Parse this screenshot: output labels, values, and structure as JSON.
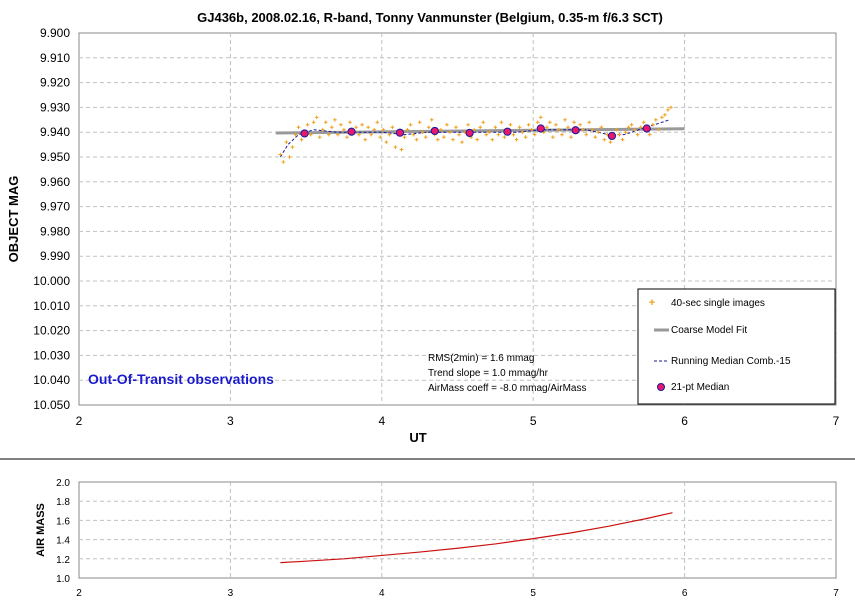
{
  "chart_data": [
    {
      "type": "scatter",
      "title": "GJ436b, 2008.02.16, R-band, Tonny Vanmunster (Belgium, 0.35-m f/6.3 SCT)",
      "xlabel": "UT",
      "ylabel": "OBJECT MAG",
      "xlim": [
        2,
        7
      ],
      "ylim": [
        9.9,
        10.05
      ],
      "y_inverted": true,
      "grid": true,
      "x_ticks": [
        "2",
        "3",
        "4",
        "5",
        "6",
        "7"
      ],
      "y_ticks": [
        "9.900",
        "9.910",
        "9.920",
        "9.930",
        "9.940",
        "9.950",
        "9.960",
        "9.970",
        "9.980",
        "9.990",
        "10.000",
        "10.010",
        "10.020",
        "10.030",
        "10.040",
        "10.050"
      ],
      "legend_position": "bottom-right",
      "series": [
        {
          "name": "40-sec single images",
          "kind": "scatter",
          "color": "#f0a020",
          "x": [
            3.33,
            3.35,
            3.37,
            3.39,
            3.41,
            3.43,
            3.45,
            3.47,
            3.49,
            3.51,
            3.53,
            3.55,
            3.57,
            3.59,
            3.61,
            3.63,
            3.65,
            3.67,
            3.69,
            3.71,
            3.73,
            3.75,
            3.77,
            3.79,
            3.81,
            3.83,
            3.85,
            3.87,
            3.89,
            3.91,
            3.93,
            3.95,
            3.97,
            3.99,
            4.01,
            4.03,
            4.05,
            4.07,
            4.09,
            4.11,
            4.13,
            4.15,
            4.17,
            4.19,
            4.21,
            4.23,
            4.25,
            4.27,
            4.29,
            4.31,
            4.33,
            4.35,
            4.37,
            4.39,
            4.41,
            4.43,
            4.45,
            4.47,
            4.49,
            4.51,
            4.53,
            4.55,
            4.57,
            4.59,
            4.61,
            4.63,
            4.65,
            4.67,
            4.69,
            4.71,
            4.73,
            4.75,
            4.77,
            4.79,
            4.81,
            4.83,
            4.85,
            4.87,
            4.89,
            4.91,
            4.93,
            4.95,
            4.97,
            4.99,
            5.01,
            5.03,
            5.05,
            5.07,
            5.09,
            5.11,
            5.13,
            5.15,
            5.17,
            5.19,
            5.21,
            5.23,
            5.25,
            5.27,
            5.29,
            5.31,
            5.33,
            5.35,
            5.37,
            5.39,
            5.41,
            5.43,
            5.45,
            5.47,
            5.49,
            5.51,
            5.53,
            5.55,
            5.57,
            5.59,
            5.61,
            5.63,
            5.65,
            5.67,
            5.69,
            5.71,
            5.73,
            5.75,
            5.77,
            5.79,
            5.81,
            5.83,
            5.85,
            5.87,
            5.89,
            5.91
          ],
          "y": [
            9.949,
            9.952,
            9.944,
            9.95,
            9.946,
            9.941,
            9.938,
            9.943,
            9.94,
            9.937,
            9.941,
            9.936,
            9.934,
            9.942,
            9.939,
            9.936,
            9.941,
            9.938,
            9.935,
            9.941,
            9.937,
            9.939,
            9.942,
            9.936,
            9.94,
            9.938,
            9.941,
            9.937,
            9.943,
            9.938,
            9.941,
            9.939,
            9.936,
            9.942,
            9.939,
            9.944,
            9.941,
            9.938,
            9.946,
            9.94,
            9.947,
            9.942,
            9.939,
            9.937,
            9.941,
            9.943,
            9.936,
            9.94,
            9.942,
            9.938,
            9.935,
            9.941,
            9.943,
            9.939,
            9.942,
            9.937,
            9.94,
            9.943,
            9.938,
            9.941,
            9.944,
            9.94,
            9.937,
            9.942,
            9.939,
            9.943,
            9.938,
            9.936,
            9.941,
            9.94,
            9.943,
            9.938,
            9.941,
            9.936,
            9.942,
            9.939,
            9.937,
            9.941,
            9.943,
            9.938,
            9.94,
            9.942,
            9.937,
            9.939,
            9.941,
            9.936,
            9.934,
            9.94,
            9.938,
            9.936,
            9.942,
            9.937,
            9.939,
            9.941,
            9.935,
            9.938,
            9.942,
            9.936,
            9.94,
            9.937,
            9.939,
            9.941,
            9.936,
            9.939,
            9.942,
            9.94,
            9.938,
            9.943,
            9.941,
            9.944,
            9.942,
            9.939,
            9.941,
            9.943,
            9.94,
            9.938,
            9.937,
            9.939,
            9.941,
            9.938,
            9.936,
            9.939,
            9.941,
            9.937,
            9.935,
            9.939,
            9.934,
            9.933,
            9.931,
            9.93
          ]
        },
        {
          "name": "Coarse Model Fit",
          "kind": "line",
          "color": "#999999",
          "x": [
            3.3,
            6.0
          ],
          "y": [
            9.9403,
            9.9386
          ]
        },
        {
          "name": "Running Median Comb.-15",
          "kind": "dashed-line",
          "color": "#1a1a99",
          "x": [
            3.33,
            3.38,
            3.45,
            3.55,
            3.7,
            3.85,
            4.0,
            4.15,
            4.3,
            4.45,
            4.6,
            4.75,
            4.9,
            5.05,
            5.2,
            5.35,
            5.5,
            5.6,
            5.7,
            5.8,
            5.9
          ],
          "y": [
            9.95,
            9.945,
            9.941,
            9.939,
            9.94,
            9.94,
            9.94,
            9.941,
            9.94,
            9.94,
            9.94,
            9.94,
            9.94,
            9.939,
            9.939,
            9.939,
            9.941,
            9.941,
            9.939,
            9.937,
            9.935
          ]
        },
        {
          "name": "21-pt Median",
          "kind": "marker",
          "color": "#e8186c",
          "x": [
            3.49,
            3.8,
            4.12,
            4.35,
            4.58,
            4.83,
            5.05,
            5.28,
            5.52,
            5.75
          ],
          "y": [
            9.9405,
            9.9398,
            9.9402,
            9.9395,
            9.9403,
            9.9398,
            9.9385,
            9.9392,
            9.9415,
            9.9385
          ]
        }
      ],
      "annotations": {
        "stats": [
          "RMS(2min) = 1.6 mmag",
          "Trend slope = 1.0 mmag/hr",
          "AirMass coeff = -8.0 mmag/AirMass"
        ],
        "label": "Out-Of-Transit observations"
      }
    },
    {
      "type": "line",
      "title": "",
      "xlabel": "",
      "ylabel": "AIR MASS",
      "xlim": [
        2,
        7
      ],
      "ylim": [
        1.0,
        2.0
      ],
      "grid": true,
      "x_ticks": [
        "2",
        "3",
        "4",
        "5",
        "6",
        "7"
      ],
      "y_ticks": [
        "1.0",
        "1.2",
        "1.4",
        "1.6",
        "1.8",
        "2.0"
      ],
      "series": [
        {
          "kind": "line",
          "color": "#cc1111",
          "x": [
            3.33,
            3.5,
            3.75,
            4.0,
            4.25,
            4.5,
            4.75,
            5.0,
            5.25,
            5.5,
            5.75,
            5.92
          ],
          "y": [
            1.16,
            1.175,
            1.2,
            1.235,
            1.27,
            1.31,
            1.355,
            1.41,
            1.47,
            1.54,
            1.62,
            1.68
          ]
        }
      ]
    }
  ]
}
